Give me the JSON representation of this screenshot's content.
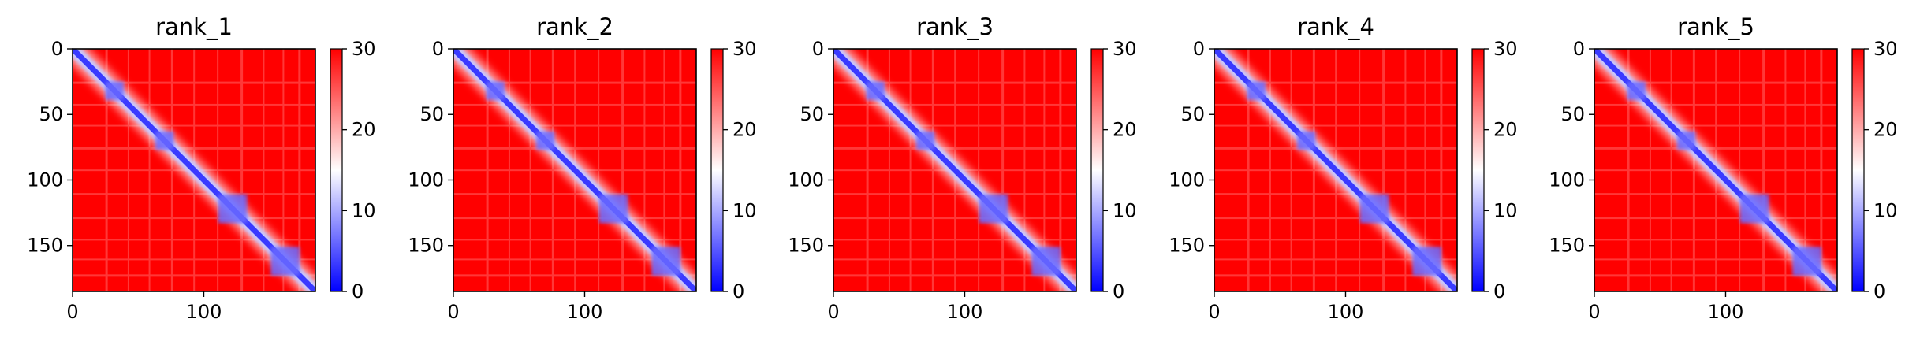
{
  "colors": {
    "low": "#0000ff",
    "mid": "#ffffff",
    "high": "#ff0000",
    "axis": "#000000",
    "background": "#ffffff"
  },
  "chart_data": [
    {
      "type": "heatmap",
      "title": "rank_1",
      "xlabel": "",
      "ylabel": "",
      "xlim": [
        0,
        185
      ],
      "ylim": [
        185,
        0
      ],
      "x_ticks": [
        0,
        100
      ],
      "y_ticks": [
        0,
        50,
        100,
        150
      ],
      "colormap": "bwr",
      "colorbar": {
        "ticks": [
          0,
          10,
          20,
          30
        ],
        "range": [
          0,
          30
        ]
      },
      "blocks": [
        [
          32,
          7
        ],
        [
          70,
          7
        ],
        [
          122,
          11
        ],
        [
          162,
          11
        ]
      ]
    },
    {
      "type": "heatmap",
      "title": "rank_2",
      "xlabel": "",
      "ylabel": "",
      "xlim": [
        0,
        185
      ],
      "ylim": [
        185,
        0
      ],
      "x_ticks": [
        0,
        100
      ],
      "y_ticks": [
        0,
        50,
        100,
        150
      ],
      "colormap": "bwr",
      "colorbar": {
        "ticks": [
          0,
          10,
          20,
          30
        ],
        "range": [
          0,
          30
        ]
      },
      "blocks": [
        [
          32,
          7
        ],
        [
          70,
          7
        ],
        [
          122,
          11
        ],
        [
          162,
          11
        ]
      ]
    },
    {
      "type": "heatmap",
      "title": "rank_3",
      "xlabel": "",
      "ylabel": "",
      "xlim": [
        0,
        185
      ],
      "ylim": [
        185,
        0
      ],
      "x_ticks": [
        0,
        100
      ],
      "y_ticks": [
        0,
        50,
        100,
        150
      ],
      "colormap": "bwr",
      "colorbar": {
        "ticks": [
          0,
          10,
          20,
          30
        ],
        "range": [
          0,
          30
        ]
      },
      "blocks": [
        [
          32,
          7
        ],
        [
          70,
          7
        ],
        [
          122,
          11
        ],
        [
          162,
          11
        ]
      ]
    },
    {
      "type": "heatmap",
      "title": "rank_4",
      "xlabel": "",
      "ylabel": "",
      "xlim": [
        0,
        185
      ],
      "ylim": [
        185,
        0
      ],
      "x_ticks": [
        0,
        100
      ],
      "y_ticks": [
        0,
        50,
        100,
        150
      ],
      "colormap": "bwr",
      "colorbar": {
        "ticks": [
          0,
          10,
          20,
          30
        ],
        "range": [
          0,
          30
        ]
      },
      "blocks": [
        [
          32,
          7
        ],
        [
          70,
          7
        ],
        [
          122,
          11
        ],
        [
          162,
          11
        ]
      ]
    },
    {
      "type": "heatmap",
      "title": "rank_5",
      "xlabel": "",
      "ylabel": "",
      "xlim": [
        0,
        185
      ],
      "ylim": [
        185,
        0
      ],
      "x_ticks": [
        0,
        100
      ],
      "y_ticks": [
        0,
        50,
        100,
        150
      ],
      "colormap": "bwr",
      "colorbar": {
        "ticks": [
          0,
          10,
          20,
          30
        ],
        "range": [
          0,
          30
        ]
      },
      "blocks": [
        [
          32,
          7
        ],
        [
          70,
          7
        ],
        [
          122,
          11
        ],
        [
          162,
          11
        ]
      ]
    }
  ]
}
